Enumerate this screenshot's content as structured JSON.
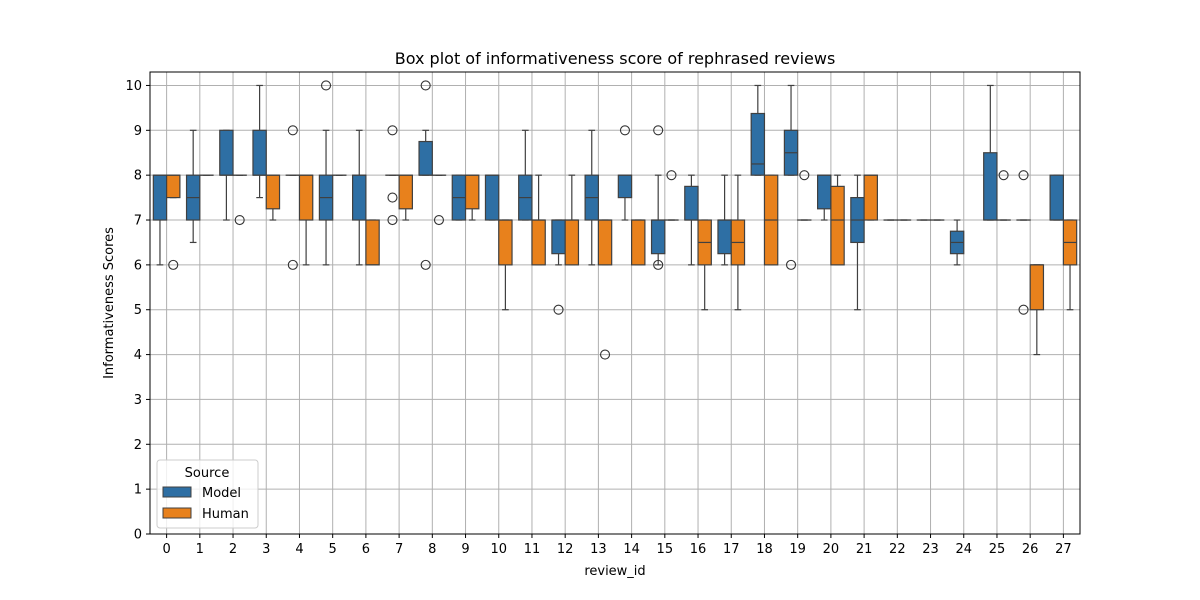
{
  "chart_data": {
    "type": "box",
    "title": "Box plot of informativeness score of rephrased reviews",
    "xlabel": "review_id",
    "ylabel": "Informativeness Scores",
    "ylim": [
      0,
      10.3
    ],
    "yticks": [
      0,
      1,
      2,
      3,
      4,
      5,
      6,
      7,
      8,
      9,
      10
    ],
    "categories": [
      "0",
      "1",
      "2",
      "3",
      "4",
      "5",
      "6",
      "7",
      "8",
      "9",
      "10",
      "11",
      "12",
      "13",
      "14",
      "15",
      "16",
      "17",
      "18",
      "19",
      "20",
      "21",
      "22",
      "23",
      "24",
      "25",
      "26",
      "27"
    ],
    "grid": true,
    "legend": {
      "title": "Source",
      "position": "lower-left"
    },
    "series": [
      {
        "name": "Model",
        "color": "#2e6fa4",
        "boxes": [
          {
            "q1": 7,
            "med": 8,
            "q3": 8,
            "wl": 6,
            "wh": 8,
            "out": []
          },
          {
            "q1": 7,
            "med": 7.5,
            "q3": 8,
            "wl": 6.5,
            "wh": 9,
            "out": []
          },
          {
            "q1": 8,
            "med": 8,
            "q3": 9,
            "wl": 7,
            "wh": 9,
            "out": []
          },
          {
            "q1": 8,
            "med": 8,
            "q3": 9,
            "wl": 7.5,
            "wh": 10,
            "out": []
          },
          {
            "q1": 8,
            "med": 8,
            "q3": 8,
            "wl": 8,
            "wh": 8,
            "out": [
              9,
              6
            ]
          },
          {
            "q1": 7,
            "med": 7.5,
            "q3": 8,
            "wl": 6,
            "wh": 9,
            "out": [
              10
            ]
          },
          {
            "q1": 7,
            "med": 8,
            "q3": 8,
            "wl": 6,
            "wh": 9,
            "out": []
          },
          {
            "q1": 8,
            "med": 8,
            "q3": 8,
            "wl": 8,
            "wh": 8,
            "out": [
              9,
              7.5,
              7
            ]
          },
          {
            "q1": 8,
            "med": 8,
            "q3": 8.75,
            "wl": 8,
            "wh": 9,
            "out": [
              10,
              6
            ]
          },
          {
            "q1": 7,
            "med": 7.5,
            "q3": 8,
            "wl": 7,
            "wh": 8,
            "out": []
          },
          {
            "q1": 7,
            "med": 8,
            "q3": 8,
            "wl": 7,
            "wh": 8,
            "out": []
          },
          {
            "q1": 7,
            "med": 7.5,
            "q3": 8,
            "wl": 7,
            "wh": 9,
            "out": []
          },
          {
            "q1": 6.25,
            "med": 7,
            "q3": 7,
            "wl": 6,
            "wh": 7,
            "out": [
              5
            ]
          },
          {
            "q1": 7,
            "med": 7.5,
            "q3": 8,
            "wl": 6,
            "wh": 9,
            "out": []
          },
          {
            "q1": 7.5,
            "med": 8,
            "q3": 8,
            "wl": 7,
            "wh": 8,
            "out": [
              9
            ]
          },
          {
            "q1": 6.25,
            "med": 7,
            "q3": 7,
            "wl": 6,
            "wh": 8,
            "out": [
              9,
              6
            ]
          },
          {
            "q1": 7,
            "med": 7,
            "q3": 7.75,
            "wl": 6,
            "wh": 8,
            "out": []
          },
          {
            "q1": 6.25,
            "med": 7,
            "q3": 7,
            "wl": 6,
            "wh": 8,
            "out": []
          },
          {
            "q1": 8,
            "med": 8.25,
            "q3": 9.375,
            "wl": 8,
            "wh": 10,
            "out": []
          },
          {
            "q1": 8,
            "med": 8.5,
            "q3": 9,
            "wl": 8,
            "wh": 10,
            "out": [
              6
            ]
          },
          {
            "q1": 7.25,
            "med": 8,
            "q3": 8,
            "wl": 7,
            "wh": 8,
            "out": []
          },
          {
            "q1": 6.5,
            "med": 7,
            "q3": 7.5,
            "wl": 5,
            "wh": 8,
            "out": []
          },
          {
            "q1": 7,
            "med": 7,
            "q3": 7,
            "wl": 7,
            "wh": 7,
            "out": []
          },
          {
            "q1": 7,
            "med": 7,
            "q3": 7,
            "wl": 7,
            "wh": 7,
            "out": []
          },
          {
            "q1": 6.25,
            "med": 6.5,
            "q3": 6.75,
            "wl": 6,
            "wh": 7,
            "out": []
          },
          {
            "q1": 7,
            "med": 7,
            "q3": 8.5,
            "wl": 7,
            "wh": 10,
            "out": []
          },
          {
            "q1": 7,
            "med": 7,
            "q3": 7,
            "wl": 7,
            "wh": 7,
            "out": [
              8,
              5
            ]
          },
          {
            "q1": 7,
            "med": 7,
            "q3": 8,
            "wl": 7,
            "wh": 8,
            "out": []
          }
        ]
      },
      {
        "name": "Human",
        "color": "#e8811c",
        "boxes": [
          {
            "q1": 7.5,
            "med": 8,
            "q3": 8,
            "wl": 7.5,
            "wh": 8,
            "out": [
              6
            ]
          },
          {
            "q1": 8,
            "med": 8,
            "q3": 8,
            "wl": 8,
            "wh": 8,
            "out": []
          },
          {
            "q1": 8,
            "med": 8,
            "q3": 8,
            "wl": 8,
            "wh": 8,
            "out": [
              7
            ]
          },
          {
            "q1": 7.25,
            "med": 8,
            "q3": 8,
            "wl": 7,
            "wh": 8,
            "out": []
          },
          {
            "q1": 7,
            "med": 8,
            "q3": 8,
            "wl": 6,
            "wh": 8,
            "out": []
          },
          {
            "q1": 8,
            "med": 8,
            "q3": 8,
            "wl": 8,
            "wh": 8,
            "out": []
          },
          {
            "q1": 6,
            "med": 6,
            "q3": 7,
            "wl": 6,
            "wh": 7,
            "out": []
          },
          {
            "q1": 7.25,
            "med": 8,
            "q3": 8,
            "wl": 7,
            "wh": 8,
            "out": []
          },
          {
            "q1": 8,
            "med": 8,
            "q3": 8,
            "wl": 8,
            "wh": 8,
            "out": [
              7
            ]
          },
          {
            "q1": 7.25,
            "med": 8,
            "q3": 8,
            "wl": 7,
            "wh": 8,
            "out": []
          },
          {
            "q1": 6,
            "med": 7,
            "q3": 7,
            "wl": 5,
            "wh": 7,
            "out": []
          },
          {
            "q1": 6,
            "med": 7,
            "q3": 7,
            "wl": 6,
            "wh": 8,
            "out": []
          },
          {
            "q1": 6,
            "med": 7,
            "q3": 7,
            "wl": 6,
            "wh": 8,
            "out": []
          },
          {
            "q1": 6,
            "med": 7,
            "q3": 7,
            "wl": 6,
            "wh": 7,
            "out": [
              4
            ]
          },
          {
            "q1": 6,
            "med": 7,
            "q3": 7,
            "wl": 6,
            "wh": 7,
            "out": []
          },
          {
            "q1": 7,
            "med": 7,
            "q3": 7,
            "wl": 7,
            "wh": 7,
            "out": [
              8
            ]
          },
          {
            "q1": 6,
            "med": 6.5,
            "q3": 7,
            "wl": 5,
            "wh": 7,
            "out": []
          },
          {
            "q1": 6,
            "med": 6.5,
            "q3": 7,
            "wl": 5,
            "wh": 8,
            "out": []
          },
          {
            "q1": 6,
            "med": 7,
            "q3": 8,
            "wl": 6,
            "wh": 8,
            "out": []
          },
          {
            "q1": 7,
            "med": 7,
            "q3": 7,
            "wl": 7,
            "wh": 7,
            "out": [
              8
            ]
          },
          {
            "q1": 6,
            "med": 7,
            "q3": 7.75,
            "wl": 6,
            "wh": 8,
            "out": []
          },
          {
            "q1": 7,
            "med": 8,
            "q3": 8,
            "wl": 7,
            "wh": 8,
            "out": []
          },
          {
            "q1": 7,
            "med": 7,
            "q3": 7,
            "wl": 7,
            "wh": 7,
            "out": []
          },
          {
            "q1": 7,
            "med": 7,
            "q3": 7,
            "wl": 7,
            "wh": 7,
            "out": []
          },
          null,
          {
            "q1": 7,
            "med": 7,
            "q3": 7,
            "wl": 7,
            "wh": 7,
            "out": [
              8
            ]
          },
          {
            "q1": 5,
            "med": 6,
            "q3": 6,
            "wl": 4,
            "wh": 6,
            "out": []
          },
          {
            "q1": 6,
            "med": 6.5,
            "q3": 7,
            "wl": 5,
            "wh": 7,
            "out": []
          }
        ]
      }
    ]
  }
}
